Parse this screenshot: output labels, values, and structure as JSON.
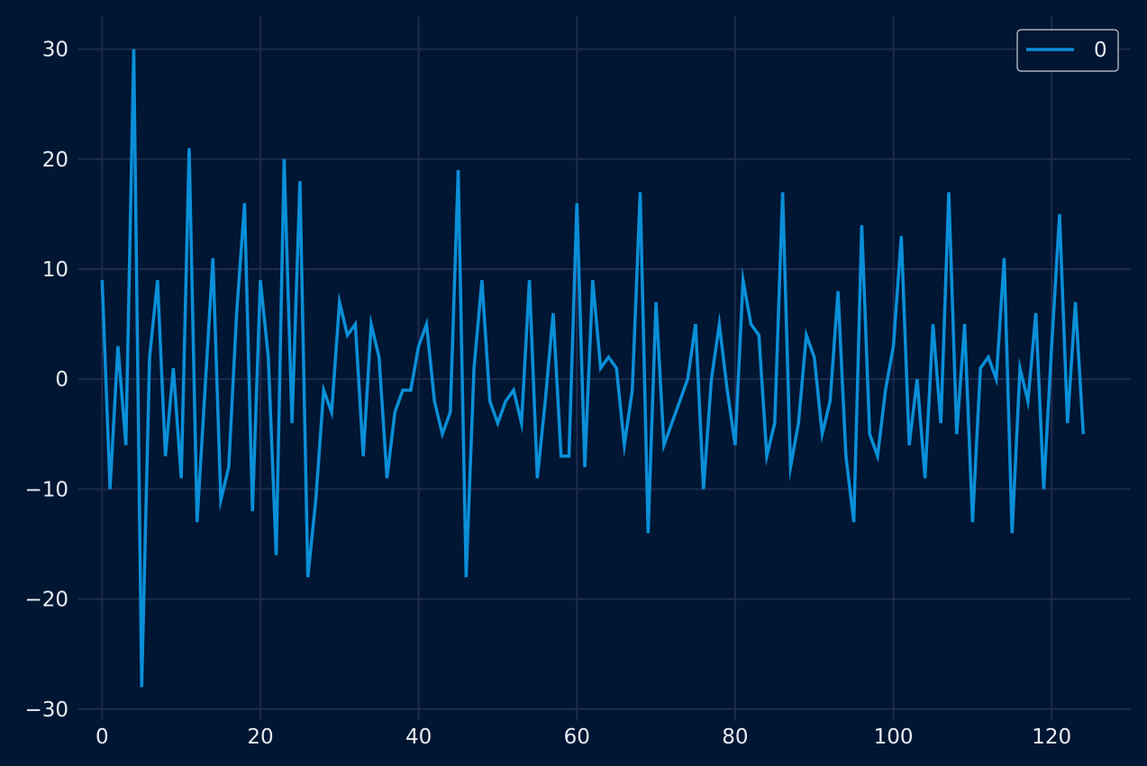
{
  "chart_data": {
    "type": "line",
    "title": "",
    "xlabel": "",
    "ylabel": "",
    "xlim": [
      -3,
      130
    ],
    "ylim": [
      -31,
      33
    ],
    "xticks": [
      0,
      20,
      40,
      60,
      80,
      100,
      120
    ],
    "yticks": [
      -30,
      -20,
      -10,
      0,
      10,
      20,
      30
    ],
    "xtick_labels": [
      "0",
      "20",
      "40",
      "60",
      "80",
      "100",
      "120"
    ],
    "ytick_labels": [
      "−30",
      "−20",
      "−10",
      "0",
      "10",
      "20",
      "30"
    ],
    "grid": true,
    "legend": {
      "position": "top-right",
      "entries": [
        "0"
      ]
    },
    "colors": {
      "background": "#001633",
      "grid": "#1f2a4d",
      "line": "#0a8fd8",
      "text": "#e8ecf2"
    },
    "series": [
      {
        "name": "0",
        "x_start": 0,
        "values": [
          9,
          -10,
          3,
          -6,
          30,
          -28,
          2,
          9,
          -7,
          1,
          -9,
          21,
          -13,
          -1,
          11,
          -11,
          -8,
          6,
          16,
          -12,
          9,
          2,
          -16,
          20,
          -4,
          18,
          -18,
          -11,
          -1,
          -3,
          7,
          4,
          5,
          -7,
          5,
          2,
          -9,
          -3,
          -1,
          -1,
          3,
          5,
          -2,
          -5,
          -3,
          19,
          -18,
          1,
          9,
          -2,
          -4,
          -2,
          -1,
          -4,
          9,
          -9,
          -2,
          6,
          -7,
          -7,
          16,
          -8,
          9,
          1,
          2,
          1,
          -6,
          -1,
          17,
          -14,
          7,
          -6,
          -4,
          -2,
          0,
          5,
          -10,
          0,
          5,
          -1,
          -6,
          9,
          5,
          4,
          -7,
          -4,
          17,
          -8,
          -4,
          4,
          2,
          -5,
          -2,
          8,
          -7,
          -13,
          14,
          -5,
          -7,
          -1,
          3,
          13,
          -6,
          0,
          -9,
          5,
          -4,
          17,
          -5,
          5,
          -13,
          1,
          2,
          0,
          11,
          -14,
          1,
          -2,
          6,
          -10,
          3,
          15,
          -4,
          7,
          -5
        ]
      }
    ]
  }
}
